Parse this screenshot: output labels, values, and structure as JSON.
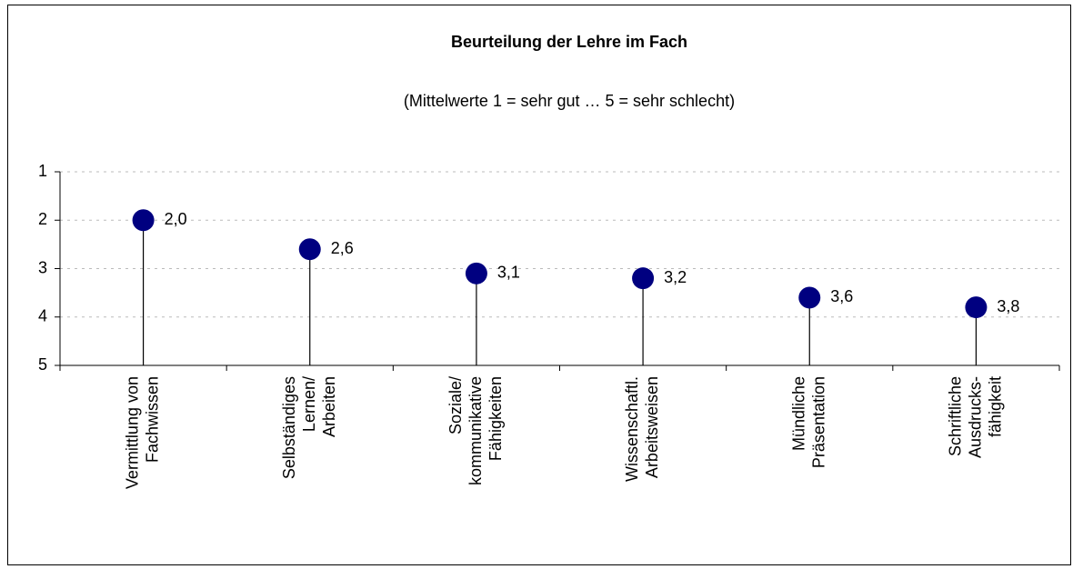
{
  "chart_data": {
    "type": "lollipop",
    "title": "Beurteilung der Lehre im Fach",
    "subtitle": "(Mittelwerte 1 = sehr gut … 5 = sehr schlecht)",
    "categories": [
      "Vermittlung von\nFachwissen",
      "Selbständiges\nLernen/\nArbeiten",
      "Soziale/\nkommunikative\nFähigkeiten",
      "Wissenschaftl.\nArbeitsweisen",
      "Mündliche\nPräsentation",
      "Schriftliche\nAusdrucks-\nfähigkeit"
    ],
    "values": [
      2.0,
      2.6,
      3.1,
      3.2,
      3.6,
      3.8
    ],
    "value_labels": [
      "2,0",
      "2,6",
      "3,1",
      "3,2",
      "3,6",
      "3,8"
    ],
    "color": "#000080",
    "ylim": [
      1,
      5
    ],
    "y_inverted": true,
    "yticks": [
      1,
      2,
      3,
      4,
      5
    ],
    "grid": true
  }
}
